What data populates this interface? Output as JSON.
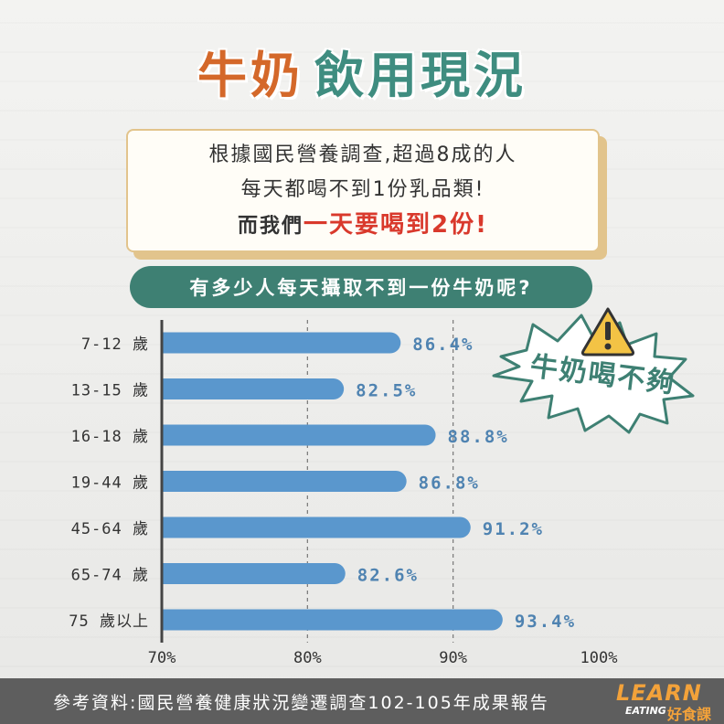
{
  "title": {
    "part1": "牛奶",
    "part2": "飲用現況"
  },
  "note": {
    "line1": "根據國民營養調查,超過8成的人",
    "line2": "每天都喝不到1份乳品類!",
    "line3_prefix": "而我們",
    "line3_highlight": "一天要喝到2份!"
  },
  "question": "有多少人每天攝取不到一份牛奶呢?",
  "callout": {
    "text": "牛奶喝不夠",
    "icon": "warning-icon"
  },
  "footer": {
    "source": "參考資料:國民營養健康狀況變遷調查102-105年成果報告"
  },
  "logo": {
    "line1": "LEARN",
    "line2": "EATING",
    "line3": "好食課"
  },
  "colors": {
    "bar": "#5a97cd",
    "label": "#4f83b1",
    "accent_orange": "#d4682a",
    "accent_teal": "#3e8073",
    "highlight_red": "#d9392c"
  },
  "chart_data": {
    "type": "bar",
    "orientation": "horizontal",
    "categories": [
      "7-12 歲",
      "13-15 歲",
      "16-18 歲",
      "19-44 歲",
      "45-64 歲",
      "65-74 歲",
      "75 歲以上"
    ],
    "values": [
      86.4,
      82.5,
      88.8,
      86.8,
      91.2,
      82.6,
      93.4
    ],
    "value_labels": [
      "86.4%",
      "82.5%",
      "88.8%",
      "86.8%",
      "91.2%",
      "82.6%",
      "93.4%"
    ],
    "xlim": [
      70,
      100
    ],
    "xticks": [
      70,
      80,
      90,
      100
    ],
    "xtick_labels": [
      "70%",
      "80%",
      "90%",
      "100%"
    ],
    "grid": "vertical dashed at 80% and 90%",
    "title": "",
    "xlabel": "",
    "ylabel": ""
  }
}
